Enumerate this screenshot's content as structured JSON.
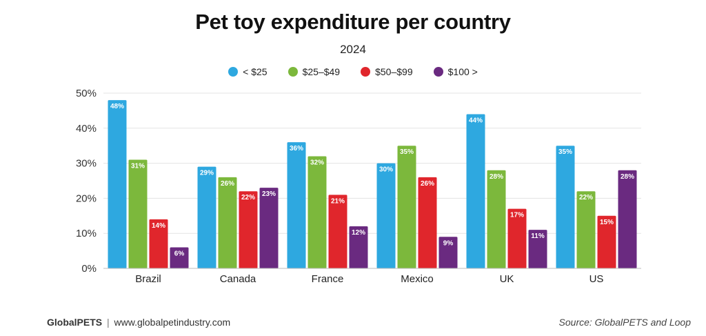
{
  "title": "Pet toy expenditure per country",
  "subtitle": "2024",
  "footer": {
    "brand": "GlobalPETS",
    "separator": "|",
    "url": "www.globalpetindustry.com",
    "source": "Source: GlobalPETS and Loop"
  },
  "chart_data": {
    "type": "bar",
    "categories": [
      "Brazil",
      "Canada",
      "France",
      "Mexico",
      "UK",
      "US"
    ],
    "series": [
      {
        "name": "< $25",
        "color": "#2ea8e0",
        "values": [
          48,
          29,
          36,
          30,
          44,
          35
        ]
      },
      {
        "name": "$25–$49",
        "color": "#7cb83c",
        "values": [
          31,
          26,
          32,
          35,
          28,
          22
        ]
      },
      {
        "name": "$50–$99",
        "color": "#e0262c",
        "values": [
          14,
          22,
          21,
          26,
          17,
          15
        ]
      },
      {
        "name": "$100 >",
        "color": "#6a2a80",
        "values": [
          6,
          23,
          12,
          9,
          11,
          28
        ]
      }
    ],
    "y_ticks": [
      "0%",
      "10%",
      "20%",
      "30%",
      "40%",
      "50%"
    ],
    "ylim": [
      0,
      50
    ],
    "value_suffix": "%",
    "grid": true,
    "legend_position": "top-center"
  }
}
